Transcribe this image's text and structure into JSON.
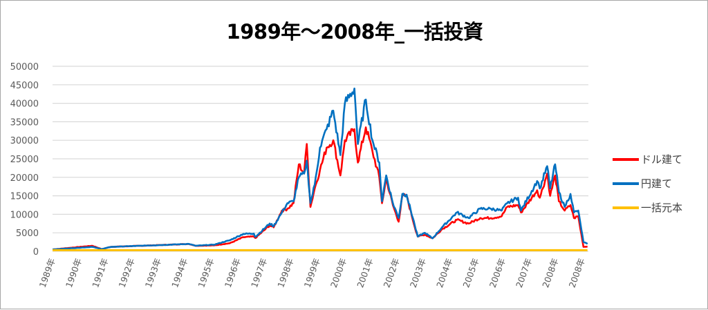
{
  "chart_data": {
    "type": "line",
    "title": "1989年～2008年_一括投資",
    "xlabel": "",
    "ylabel": "",
    "ylim": [
      0,
      50000
    ],
    "yticks": [
      "0",
      "5000",
      "10000",
      "15000",
      "20000",
      "25000",
      "30000",
      "35000",
      "40000",
      "45000",
      "50000"
    ],
    "ytick_values": [
      0,
      5000,
      10000,
      15000,
      20000,
      25000,
      30000,
      35000,
      40000,
      45000,
      50000
    ],
    "xlim": [
      0,
      20.2
    ],
    "x_tick_labels": [
      "1989年",
      "1990年",
      "1991年",
      "1992年",
      "1993年",
      "1994年",
      "1995年",
      "1996年",
      "1997年",
      "1998年",
      "1999年",
      "2000年",
      "2001年",
      "2002年",
      "2003年",
      "2004年",
      "2005年",
      "2006年",
      "2007年",
      "2008年",
      "2008年"
    ],
    "grid": true,
    "legend_position": "right",
    "x": [
      0,
      1.5,
      1.86,
      2.2,
      4.1,
      5.15,
      5.4,
      6.1,
      6.7,
      7.2,
      7.6,
      7.66,
      8.2,
      8.35,
      8.66,
      8.87,
      9.1,
      9.3,
      9.5,
      9.6,
      9.74,
      9.9,
      10.1,
      10.35,
      10.6,
      10.87,
      11.04,
      11.4,
      11.53,
      11.83,
      12.08,
      12.34,
      12.44,
      12.6,
      12.85,
      13.07,
      13.21,
      13.37,
      13.68,
      13.79,
      14.06,
      14.35,
      14.71,
      15.27,
      15.71,
      16.15,
      16.56,
      16.96,
      17.17,
      17.58,
      17.69,
      18.3,
      18.4,
      18.68,
      18.79,
      18.98,
      19.12,
      19.34,
      19.56,
      19.69,
      19.85,
      20.05,
      20.2
    ],
    "series": [
      {
        "name": "ドル建て",
        "color": "#ff0000",
        "values": [
          500,
          1500,
          600,
          1200,
          1700,
          2000,
          1500,
          1600,
          2200,
          3800,
          4000,
          3600,
          7000,
          6500,
          11000,
          11500,
          13000,
          23500,
          21000,
          29000,
          12000,
          17000,
          22000,
          28000,
          30000,
          20500,
          30000,
          33000,
          24000,
          33500,
          27000,
          20000,
          13000,
          19500,
          12500,
          8000,
          15000,
          15000,
          6500,
          4000,
          4500,
          3500,
          6000,
          8500,
          7500,
          9000,
          9000,
          9500,
          12000,
          12500,
          10500,
          16500,
          14500,
          21000,
          15000,
          20500,
          13500,
          11000,
          12500,
          9000,
          9500,
          1200,
          1300
        ]
      },
      {
        "name": "円建て",
        "color": "#0070c0",
        "values": [
          500,
          1200,
          600,
          1200,
          1700,
          2000,
          1500,
          1800,
          3000,
          4700,
          4800,
          3900,
          7500,
          6800,
          10500,
          13000,
          13500,
          20000,
          21000,
          24500,
          13000,
          18000,
          28000,
          33000,
          38000,
          26000,
          40000,
          44000,
          29000,
          41000,
          30000,
          24000,
          13500,
          20500,
          13000,
          9000,
          15500,
          15300,
          7000,
          4000,
          5000,
          3500,
          6500,
          10500,
          9000,
          11500,
          11500,
          11000,
          13000,
          14500,
          11000,
          19000,
          17000,
          23000,
          17000,
          23500,
          16000,
          12000,
          15500,
          10500,
          11000,
          2500,
          2000
        ]
      },
      {
        "name": "一括元本",
        "color": "#ffc000",
        "values": "constant",
        "constant": 300
      }
    ]
  }
}
